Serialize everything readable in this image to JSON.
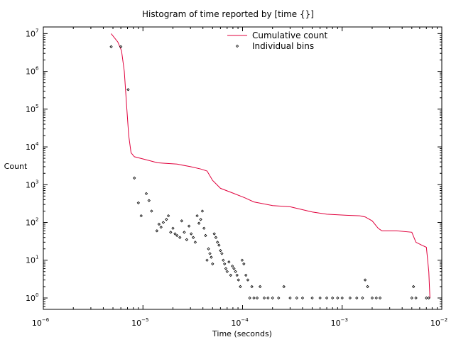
{
  "chart_data": {
    "type": "line",
    "title": "Histogram of time reported by [time {}]",
    "xlabel": "Time (seconds)",
    "ylabel": "Count",
    "x_scale": "log",
    "y_scale": "log",
    "xlim": [
      1e-06,
      0.01
    ],
    "ylim": [
      0.5,
      15000000.0
    ],
    "x_ticks": [
      {
        "base": "10",
        "exp": "−6"
      },
      {
        "base": "10",
        "exp": "−5"
      },
      {
        "base": "10",
        "exp": "−4"
      },
      {
        "base": "10",
        "exp": "−3"
      },
      {
        "base": "10",
        "exp": "−2"
      }
    ],
    "y_ticks": [
      {
        "base": "10",
        "exp": "0"
      },
      {
        "base": "10",
        "exp": "1"
      },
      {
        "base": "10",
        "exp": "2"
      },
      {
        "base": "10",
        "exp": "3"
      },
      {
        "base": "10",
        "exp": "4"
      },
      {
        "base": "10",
        "exp": "5"
      },
      {
        "base": "10",
        "exp": "6"
      },
      {
        "base": "10",
        "exp": "7"
      }
    ],
    "legend_position": "top-center",
    "series": [
      {
        "name": "Cumulative count",
        "style": "line",
        "color": "#e0003c",
        "x": [
          4.8e-06,
          5.6e-06,
          6.1e-06,
          6.5e-06,
          6.9e-06,
          7.2e-06,
          7.6e-06,
          8.2e-06,
          1.1e-05,
          1.4e-05,
          1.6e-05,
          2.2e-05,
          3e-05,
          3.8e-05,
          4.4e-05,
          5e-05,
          6e-05,
          8e-05,
          0.000105,
          0.00013,
          0.0002,
          0.0003,
          0.0005,
          0.0007,
          0.0011,
          0.0015,
          0.0017,
          0.002,
          0.0023,
          0.0025,
          0.0035,
          0.005,
          0.0055,
          0.0063,
          0.007,
          0.0074,
          0.0076
        ],
        "y": [
          10000000.0,
          6000000.0,
          3500000.0,
          1000000.0,
          100000.0,
          20000.0,
          7000.0,
          5500.0,
          4500.0,
          3800.0,
          3700.0,
          3500.0,
          3000.0,
          2600.0,
          2300.0,
          1300.0,
          800,
          600,
          450,
          350,
          280,
          260,
          190,
          165,
          155,
          150,
          140,
          110,
          70,
          60,
          60,
          55,
          30,
          25,
          22,
          5,
          1
        ]
      },
      {
        "name": "Individual bins",
        "style": "markers",
        "color": "#000000",
        "x": [
          4.8e-06,
          6e-06,
          7.1e-06,
          8.2e-06,
          9e-06,
          9.6e-06,
          1.08e-05,
          1.15e-05,
          1.22e-05,
          1.38e-05,
          1.45e-05,
          1.52e-05,
          1.6e-05,
          1.72e-05,
          1.8e-05,
          1.9e-05,
          2e-05,
          2.1e-05,
          2.2e-05,
          2.35e-05,
          2.45e-05,
          2.6e-05,
          2.75e-05,
          2.9e-05,
          3.05e-05,
          3.2e-05,
          3.35e-05,
          3.5e-05,
          3.65e-05,
          3.8e-05,
          3.95e-05,
          4.1e-05,
          4.25e-05,
          4.4e-05,
          4.55e-05,
          4.7e-05,
          4.85e-05,
          5e-05,
          5.2e-05,
          5.4e-05,
          5.6e-05,
          5.8e-05,
          6e-05,
          6.2e-05,
          6.4e-05,
          6.6e-05,
          6.8e-05,
          7e-05,
          7.3e-05,
          7.6e-05,
          7.9e-05,
          8.2e-05,
          8.5e-05,
          8.8e-05,
          9.1e-05,
          9.5e-05,
          9.9e-05,
          0.000103,
          0.000108,
          0.000113,
          0.000118,
          0.000124,
          0.00013,
          0.00014,
          0.00015,
          0.000165,
          0.00018,
          0.0002,
          0.00023,
          0.00026,
          0.0003,
          0.00035,
          0.0004,
          0.0005,
          0.0006,
          0.0007,
          0.0008,
          0.0009,
          0.001,
          0.0012,
          0.0014,
          0.0016,
          0.0017,
          0.0018,
          0.002,
          0.0022,
          0.0024,
          0.005,
          0.0052,
          0.0055,
          0.007,
          0.0074
        ],
        "y": [
          4500000.0,
          4500000.0,
          330000.0,
          1500,
          330,
          150,
          580,
          380,
          200,
          60,
          90,
          75,
          100,
          120,
          150,
          55,
          70,
          50,
          45,
          40,
          110,
          55,
          35,
          80,
          50,
          40,
          30,
          150,
          95,
          120,
          200,
          70,
          45,
          10,
          20,
          15,
          12,
          8,
          50,
          40,
          30,
          25,
          18,
          15,
          10,
          8,
          6,
          5,
          9,
          4,
          7,
          6,
          5,
          4,
          3,
          2,
          10,
          8,
          4,
          3,
          1,
          2,
          1,
          1,
          2,
          1,
          1,
          1,
          1,
          2,
          1,
          1,
          1,
          1,
          1,
          1,
          1,
          1,
          1,
          1,
          1,
          1,
          3,
          2,
          1,
          1,
          1,
          1,
          2,
          1,
          1,
          1
        ]
      }
    ]
  }
}
